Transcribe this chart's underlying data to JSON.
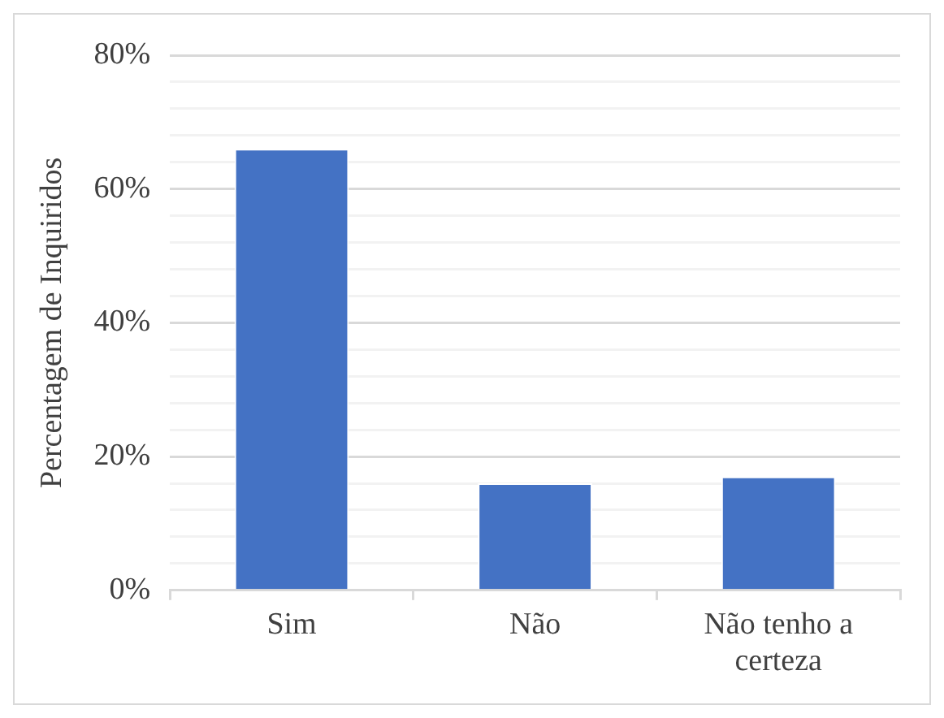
{
  "chart_data": {
    "type": "bar",
    "ylabel": "Percentagem de Inquiridos",
    "categories": [
      "Sim",
      "Não",
      "Não tenho a certeza"
    ],
    "values": [
      66,
      16,
      17
    ],
    "color": "#4472c4",
    "ylim": [
      0,
      80
    ],
    "yticks": [
      {
        "value": 0,
        "label": "0%"
      },
      {
        "value": 4,
        "label": null
      },
      {
        "value": 8,
        "label": null
      },
      {
        "value": 12,
        "label": null
      },
      {
        "value": 16,
        "label": null
      },
      {
        "value": 20,
        "label": "20%"
      },
      {
        "value": 24,
        "label": null
      },
      {
        "value": 28,
        "label": null
      },
      {
        "value": 32,
        "label": null
      },
      {
        "value": 36,
        "label": null
      },
      {
        "value": 40,
        "label": "40%"
      },
      {
        "value": 44,
        "label": null
      },
      {
        "value": 48,
        "label": null
      },
      {
        "value": 52,
        "label": null
      },
      {
        "value": 56,
        "label": null
      },
      {
        "value": 60,
        "label": "60%"
      },
      {
        "value": 64,
        "label": null
      },
      {
        "value": 68,
        "label": null
      },
      {
        "value": 72,
        "label": null
      },
      {
        "value": 76,
        "label": null
      },
      {
        "value": 80,
        "label": "80%"
      }
    ],
    "grid": "y"
  }
}
